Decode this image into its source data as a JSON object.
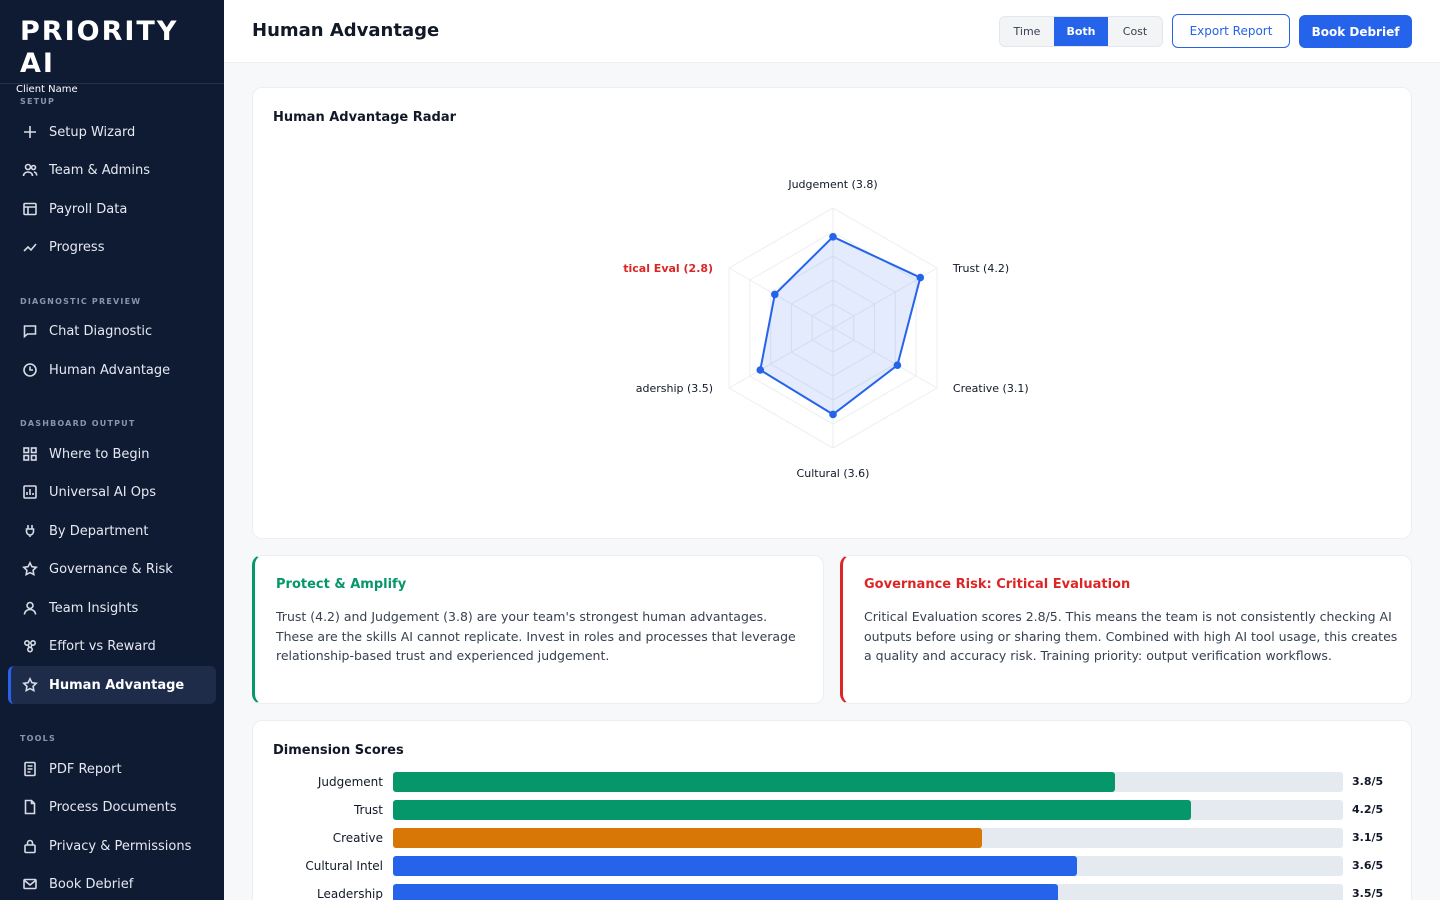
{
  "brand": {
    "title": "PRIORITY AI",
    "client": "Client Name"
  },
  "sidebar": {
    "sections": [
      {
        "label": "SETUP",
        "items": [
          {
            "label": "Setup Wizard",
            "icon": "plus-icon"
          },
          {
            "label": "Team & Admins",
            "icon": "users-icon"
          },
          {
            "label": "Payroll Data",
            "icon": "table-icon"
          },
          {
            "label": "Progress",
            "icon": "trend-icon"
          }
        ]
      },
      {
        "label": "DIAGNOSTIC PREVIEW",
        "items": [
          {
            "label": "Chat Diagnostic",
            "icon": "chat-icon"
          },
          {
            "label": "Human Advantage",
            "icon": "clock-icon"
          }
        ]
      },
      {
        "label": "DASHBOARD OUTPUT",
        "items": [
          {
            "label": "Where to Begin",
            "icon": "grid-icon"
          },
          {
            "label": "Universal AI Ops",
            "icon": "chart-icon"
          },
          {
            "label": "By Department",
            "icon": "plug-icon"
          },
          {
            "label": "Governance & Risk",
            "icon": "star-icon"
          },
          {
            "label": "Team Insights",
            "icon": "user-icon"
          },
          {
            "label": "Effort vs Reward",
            "icon": "nodes-icon"
          },
          {
            "label": "Human Advantage",
            "icon": "star-icon",
            "active": true
          }
        ]
      },
      {
        "label": "TOOLS",
        "items": [
          {
            "label": "PDF Report",
            "icon": "doc-icon"
          },
          {
            "label": "Process Documents",
            "icon": "file-icon"
          },
          {
            "label": "Privacy & Permissions",
            "icon": "lock-icon"
          },
          {
            "label": "Book Debrief",
            "icon": "mail-icon"
          }
        ]
      }
    ]
  },
  "header": {
    "title": "Human Advantage",
    "toggle": [
      "Time",
      "Both",
      "Cost"
    ],
    "toggle_selected": "Both",
    "export_label": "Export Report",
    "book_label": "Book Debrief"
  },
  "radar": {
    "title": "Human Advantage Radar",
    "labels": [
      "Judgement (3.8)",
      "Trust (4.2)",
      "Creative (3.1)",
      "Cultural (3.6)",
      "adership (3.5)",
      "tical Eval (2.8)"
    ],
    "highlight_index": 5
  },
  "chart_data": {
    "type": "radar",
    "axes": [
      "Judgement",
      "Trust",
      "Creative",
      "Cultural",
      "Leadership",
      "Critical Eval"
    ],
    "values": [
      3.8,
      4.2,
      3.1,
      3.6,
      3.5,
      2.8
    ],
    "range": [
      0,
      5
    ],
    "grid_levels": 5,
    "series_color": "#2563eb"
  },
  "insights": {
    "protect": {
      "title": "Protect & Amplify",
      "body": "Trust (4.2) and Judgement (3.8) are your team's strongest human advantages. These are the skills AI cannot replicate. Invest in roles and processes that leverage relationship-based trust and experienced judgement."
    },
    "risk": {
      "title": "Governance Risk: Critical Evaluation",
      "body": "Critical Evaluation scores 2.8/5. This means the team is not consistently checking AI outputs before using or sharing them. Combined with high AI tool usage, this creates a quality and accuracy risk. Training priority: output verification workflows."
    }
  },
  "scores": {
    "title": "Dimension Scores",
    "rows": [
      {
        "label": "Judgement",
        "value": 3.8,
        "display": "3.8/5",
        "color": "#059669"
      },
      {
        "label": "Trust",
        "value": 4.2,
        "display": "4.2/5",
        "color": "#059669"
      },
      {
        "label": "Creative",
        "value": 3.1,
        "display": "3.1/5",
        "color": "#d97706"
      },
      {
        "label": "Cultural Intel",
        "value": 3.6,
        "display": "3.6/5",
        "color": "#2563eb"
      },
      {
        "label": "Leadership",
        "value": 3.5,
        "display": "3.5/5",
        "color": "#2563eb"
      }
    ]
  }
}
